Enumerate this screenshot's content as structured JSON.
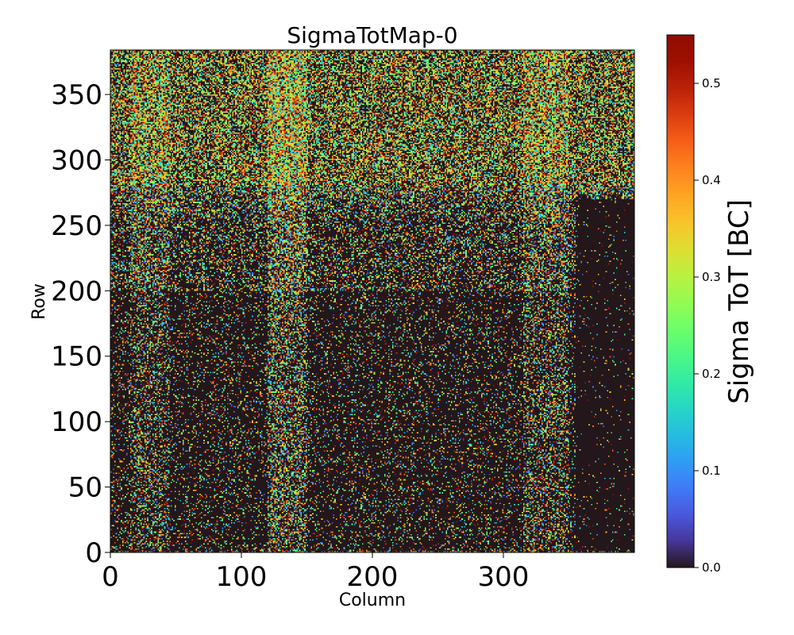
{
  "chart_data": {
    "type": "heatmap",
    "title": "SigmaTotMap-0",
    "xlabel": "Column",
    "ylabel": "Row",
    "xlim": [
      0,
      400
    ],
    "ylim": [
      0,
      384
    ],
    "x_ticks": [
      0,
      100,
      200,
      300
    ],
    "x_tick_labels": [
      "0",
      "100",
      "200",
      "300"
    ],
    "y_ticks": [
      0,
      50,
      100,
      150,
      200,
      250,
      300,
      350
    ],
    "y_tick_labels": [
      "0",
      "50",
      "100",
      "150",
      "200",
      "250",
      "300",
      "350"
    ],
    "grid": false,
    "colormap": "turbo",
    "background_color": "#30123b",
    "colorbar": {
      "label": "Sigma ToT [BC]",
      "range": [
        0.0,
        0.55
      ],
      "ticks": [
        0.0,
        0.1,
        0.2,
        0.3,
        0.4,
        0.5
      ],
      "tick_labels": [
        "0.0",
        "0.1",
        "0.2",
        "0.3",
        "0.4",
        "0.5"
      ],
      "placement": "right"
    },
    "description_of_values": "Sparse per-pixel sigma ToT; most pixels 0. Nonzero density is highest in rows 280-380 (upper band), with vertical streaks near columns 20-40, 125-145 and 320-345; right-most region (columns 360-400, rows below 270) is mostly zero.",
    "density_profile": {
      "row_bands": [
        {
          "rows": [
            280,
            384
          ],
          "fraction_nonzero": 0.55
        },
        {
          "rows": [
            200,
            280
          ],
          "fraction_nonzero": 0.3
        },
        {
          "rows": [
            0,
            200
          ],
          "fraction_nonzero": 0.15
        }
      ],
      "column_streaks": [
        {
          "columns": [
            15,
            45
          ],
          "boost": 0.18
        },
        {
          "columns": [
            120,
            150
          ],
          "boost": 0.3
        },
        {
          "columns": [
            315,
            350
          ],
          "boost": 0.2
        }
      ],
      "sparse_region": {
        "columns": [
          355,
          400
        ],
        "rows": [
          0,
          270
        ],
        "fraction_nonzero": 0.03
      },
      "bottom_edge_row": {
        "row": 0,
        "fraction_nonzero": 0.5
      }
    }
  }
}
